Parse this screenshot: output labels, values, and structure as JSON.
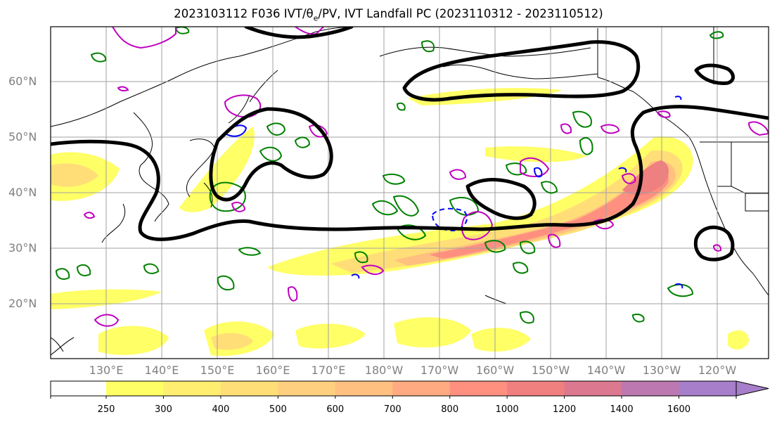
{
  "title": {
    "prefix": "2023103112 F036 IVT/",
    "theta": "θ",
    "theta_sub": "e",
    "suffix": "/PV, IVT Landfall PC (2023110312 - 2023110512)"
  },
  "lat_labels": [
    "60°N",
    "50°N",
    "40°N",
    "30°N",
    "20°N"
  ],
  "lon_labels": [
    "130°E",
    "140°E",
    "150°E",
    "160°E",
    "170°E",
    "180°W",
    "170°W",
    "160°W",
    "150°W",
    "140°W",
    "130°W",
    "120°W"
  ],
  "colorbar": {
    "levels": [
      "250",
      "300",
      "400",
      "500",
      "600",
      "700",
      "800",
      "1000",
      "1200",
      "1400",
      "1600"
    ],
    "colors": [
      "#ffff66",
      "#ffee70",
      "#ffde78",
      "#ffcf80",
      "#ffc080",
      "#ffaa80",
      "#ff9080",
      "#f07f80",
      "#dc7890",
      "#bc78b0",
      "#a77ec9"
    ],
    "extend": "max"
  },
  "legend_colors": {
    "ivt_contour": "#000000",
    "pv_positive": "#008000",
    "pv_negative": "#0000ff",
    "theta_e": "#c000c0"
  }
}
